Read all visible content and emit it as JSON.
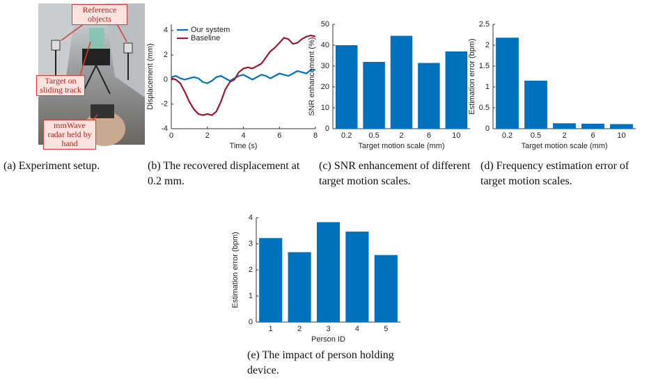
{
  "photo": {
    "labels": [
      "Reference objects",
      "Target on sliding track",
      "mmWave radar held by hand"
    ]
  },
  "captions": [
    "(a) Experiment setup.",
    "(b) The recovered displacement at 0.2 mm.",
    "(c) SNR enhancement of different target motion scales.",
    "(d) Frequency estimation error of target motion scales.",
    "(e) The impact of person holding device."
  ],
  "chart_data": [
    {
      "type": "line",
      "x_label": "Time (s)",
      "y_label": "Displacement (mm)",
      "x": [
        0,
        0.25,
        0.5,
        0.75,
        1,
        1.25,
        1.5,
        1.75,
        2,
        2.25,
        2.5,
        2.75,
        3,
        3.25,
        3.5,
        3.75,
        4,
        4.25,
        4.5,
        4.75,
        5,
        5.25,
        5.5,
        5.75,
        6,
        6.25,
        6.5,
        6.75,
        7,
        7.25,
        7.5,
        7.75,
        8
      ],
      "series": [
        {
          "name": "Our system",
          "color": "#0072bd",
          "values": [
            0.2,
            0.3,
            0.1,
            0,
            0.1,
            0.2,
            0.1,
            -0.2,
            -0.3,
            -0.1,
            0.2,
            0.3,
            0.1,
            -0.1,
            0.1,
            0.3,
            0.4,
            0.2,
            0,
            0.2,
            0.4,
            0.3,
            0.1,
            0.3,
            0.5,
            0.4,
            0.3,
            0.5,
            0.7,
            0.6,
            0.5,
            0.8,
            0.8
          ]
        },
        {
          "name": "Baseline",
          "color": "#a2142f",
          "values": [
            0.1,
            0,
            -0.3,
            -1,
            -1.8,
            -2.4,
            -2.8,
            -2.9,
            -2.8,
            -2.9,
            -2.6,
            -1.8,
            -0.8,
            -0.2,
            0,
            0.6,
            0.9,
            1,
            0.9,
            1.1,
            1.3,
            1.8,
            2.3,
            2.6,
            3,
            3.4,
            3.3,
            2.9,
            3,
            3.3,
            3.5,
            3.6,
            3.5
          ]
        }
      ],
      "xlim": [
        0,
        8
      ],
      "xticks": [
        0,
        2,
        4,
        6,
        8
      ],
      "ylim": [
        -4,
        4.5
      ],
      "yticks": [
        -4,
        -2,
        0,
        2,
        4
      ],
      "legend": "upper-left"
    },
    {
      "type": "bar",
      "x_label": "Target motion scale (mm)",
      "y_label": "SNR enhancement (%)",
      "categories": [
        "0.2",
        "0.5",
        "2",
        "6",
        "10"
      ],
      "values": [
        40,
        32,
        44.5,
        31.5,
        37
      ],
      "color": "#0072bd",
      "ylim": [
        0,
        50
      ],
      "yticks": [
        0,
        10,
        20,
        30,
        40,
        50
      ]
    },
    {
      "type": "bar",
      "x_label": "Target motion scale (mm)",
      "y_label": "Estimation error (bpm)",
      "categories": [
        "0.2",
        "0.5",
        "2",
        "6",
        "10"
      ],
      "values": [
        2.18,
        1.15,
        0.13,
        0.12,
        0.11
      ],
      "color": "#0072bd",
      "ylim": [
        0,
        2.5
      ],
      "yticks": [
        0,
        0.5,
        1,
        1.5,
        2,
        2.5
      ]
    },
    {
      "type": "bar",
      "x_label": "Person ID",
      "y_label": "Estimation error (bpm)",
      "categories": [
        "1",
        "2",
        "3",
        "4",
        "5"
      ],
      "values": [
        3.22,
        2.68,
        3.83,
        3.47,
        2.57
      ],
      "color": "#0072bd",
      "ylim": [
        0,
        4
      ],
      "yticks": [
        0,
        1,
        2,
        3,
        4
      ]
    }
  ]
}
